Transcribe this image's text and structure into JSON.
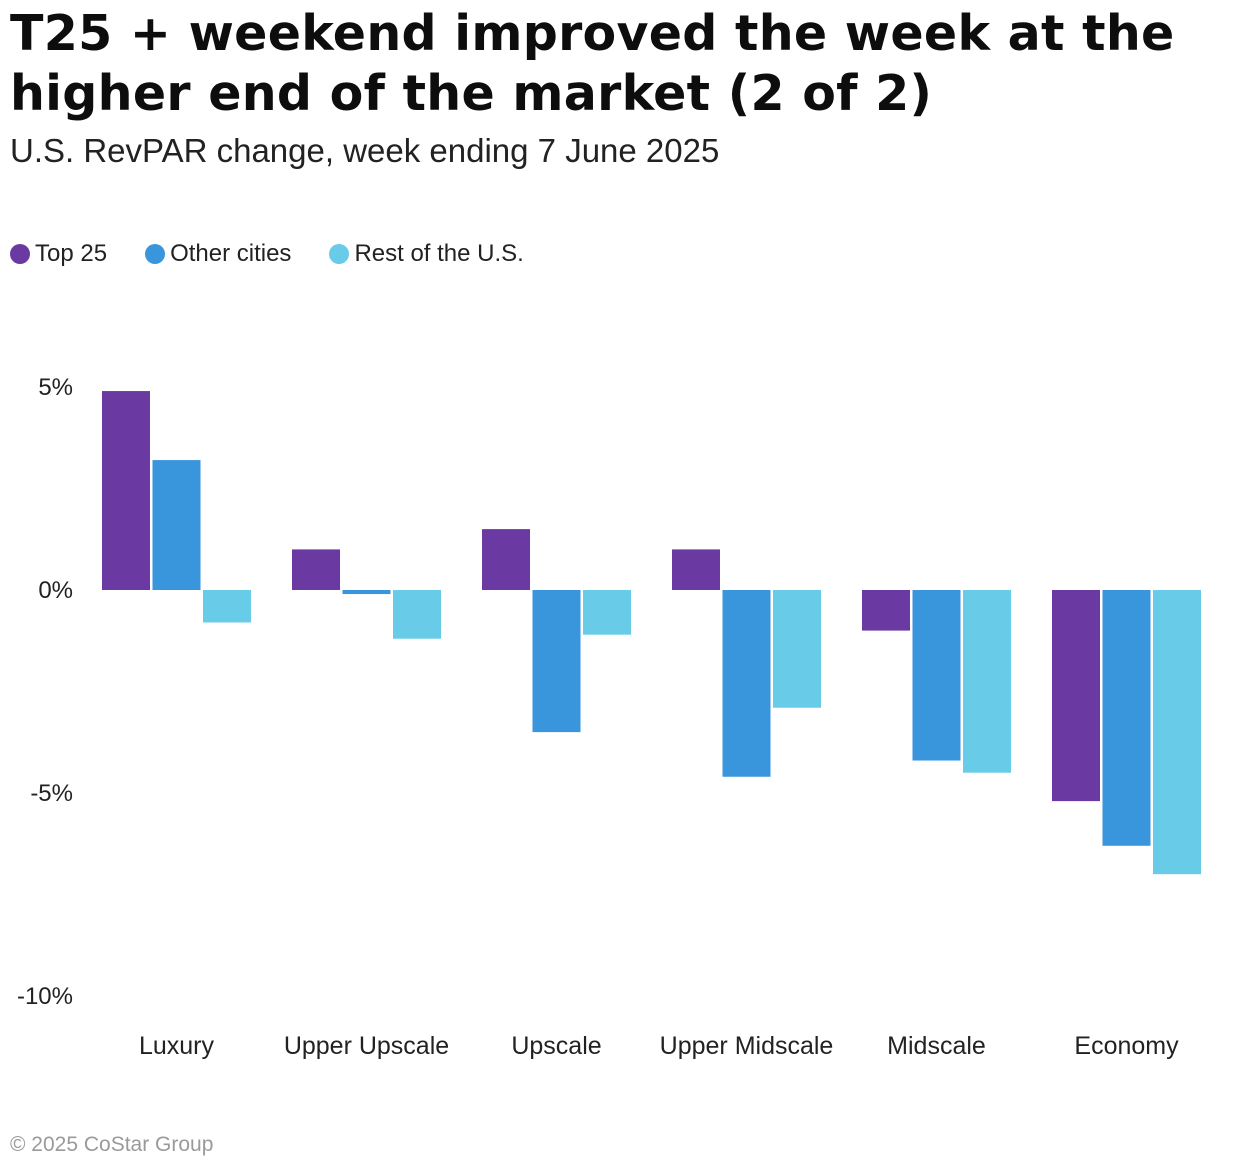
{
  "title": "T25 + weekend improved the week at the higher end of the market (2 of 2)",
  "subtitle": "U.S. RevPAR change, week ending 7 June 2025",
  "footer": "© 2025 CoStar Group",
  "chart_data": {
    "type": "bar",
    "title": "T25 + weekend improved the week at the higher end of the market (2 of 2)",
    "subtitle": "U.S. RevPAR change, week ending 7 June 2025",
    "xlabel": "",
    "ylabel": "",
    "ylim": [
      -10,
      5
    ],
    "yticks": [
      5,
      0,
      -5,
      -10
    ],
    "ytick_labels": [
      "5%",
      "0%",
      "-5%",
      "-10%"
    ],
    "grid": false,
    "legend_position": "top-left",
    "categories": [
      "Luxury",
      "Upper Upscale",
      "Upscale",
      "Upper Midscale",
      "Midscale",
      "Economy"
    ],
    "series": [
      {
        "name": "Top 25",
        "color": "#6a3aa2",
        "values": [
          4.9,
          1.0,
          1.5,
          1.0,
          -1.0,
          -5.2
        ]
      },
      {
        "name": "Other cities",
        "color": "#3a96dc",
        "values": [
          3.2,
          -0.1,
          -3.5,
          -4.6,
          -4.2,
          -6.3
        ]
      },
      {
        "name": "Rest of the U.S.",
        "color": "#68cbe8",
        "values": [
          -0.8,
          -1.2,
          -1.1,
          -2.9,
          -4.5,
          -7.0
        ]
      }
    ]
  }
}
